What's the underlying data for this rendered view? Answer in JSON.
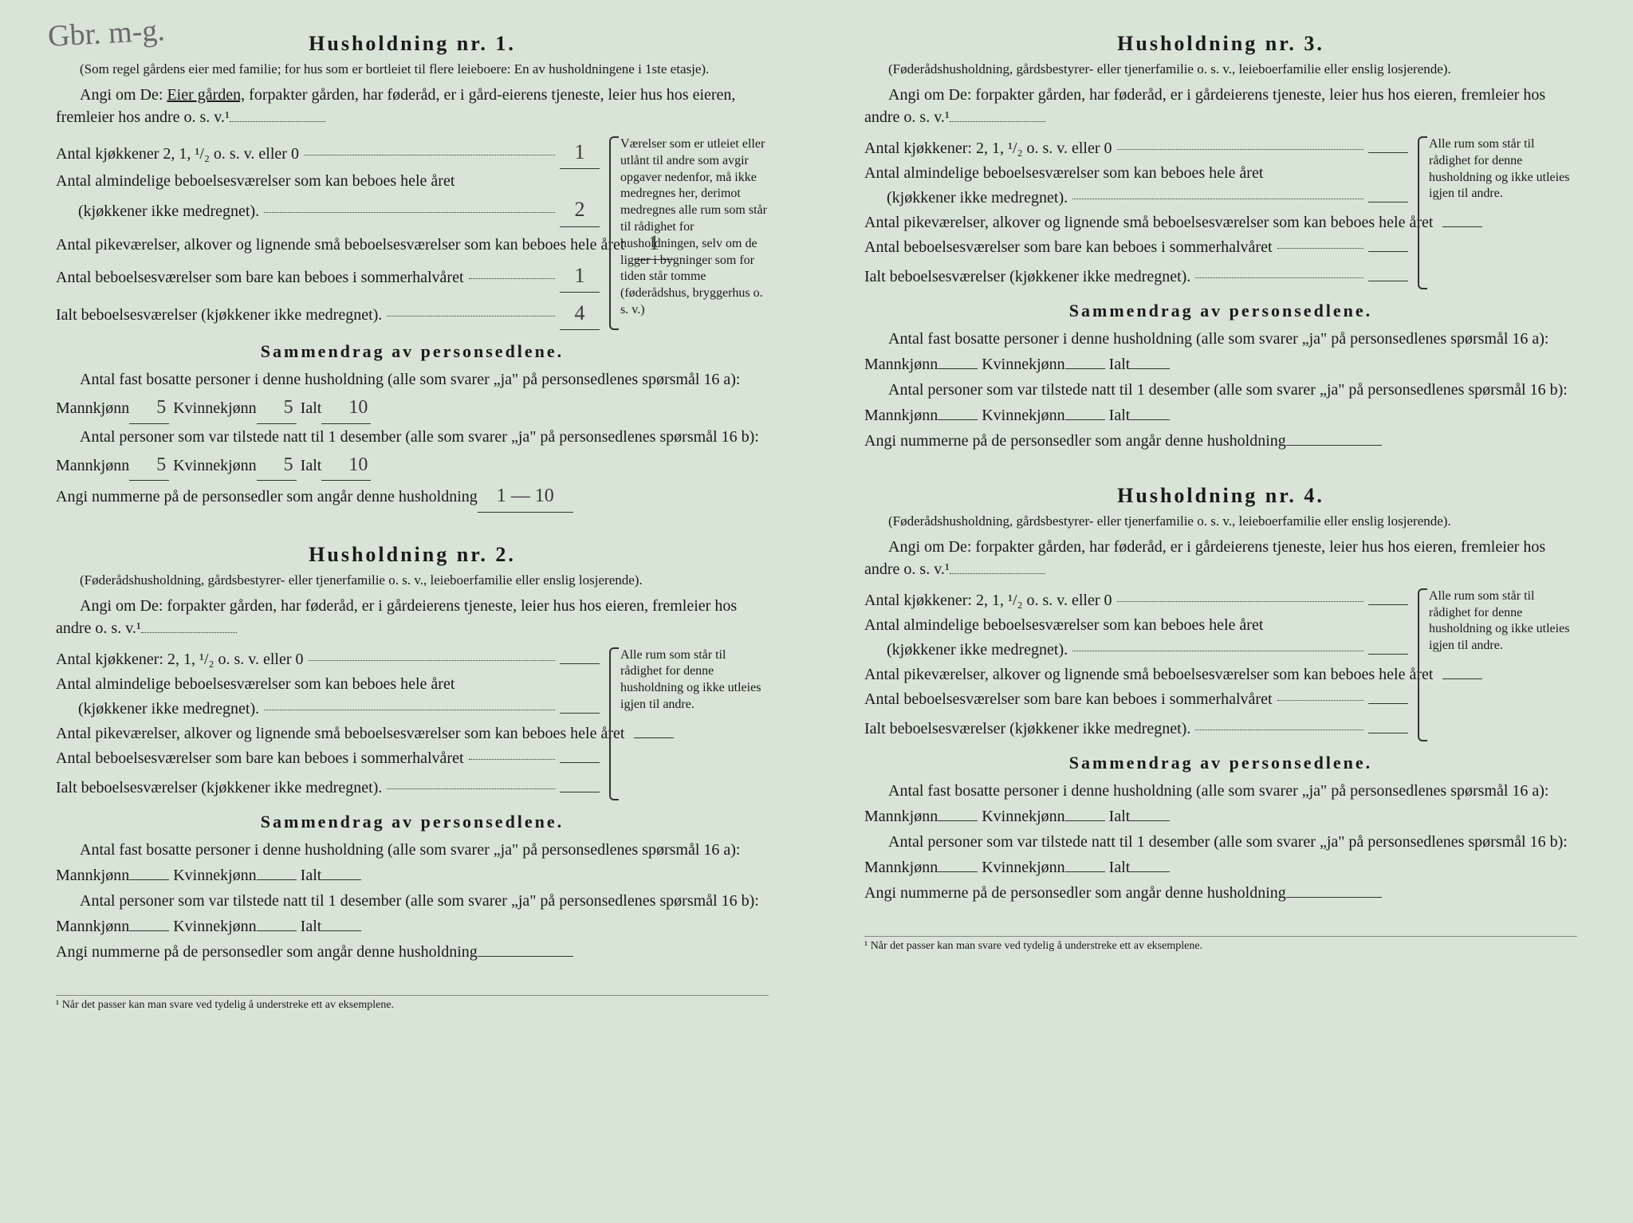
{
  "handwritten_corner": "Gbr.\nm-g.",
  "footnote": "¹ Når det passer kan man svare ved tydelig å understreke ett av eksemplene.",
  "households": [
    {
      "title": "Husholdning nr. 1.",
      "subtitle": "(Som regel gårdens eier med familie; for hus som er bortleiet til flere leieboere: En av husholdningene i 1ste etasje).",
      "instruct_pre": "Angi om De: ",
      "instruct_underlined": "Eier gården,",
      "instruct_post": " forpakter gården, har føderåd, er i gård-eierens tjeneste, leier hus hos eieren, fremleier hos andre o. s. v.¹",
      "rooms": {
        "kitchen": {
          "label": "Antal kjøkkener 2, 1, ¹/₂ o. s. v. eller 0",
          "value": "1"
        },
        "ordinary": {
          "label": "Antal almindelige beboelsesværelser som kan beboes hele året",
          "sublabel": "(kjøkkener ikke medregnet).",
          "value": "2"
        },
        "small": {
          "label": "Antal pikeværelser, alkover og lignende små beboelsesværelser som kan beboes hele året",
          "value": "1"
        },
        "summer": {
          "label": "Antal beboelsesværelser som bare kan beboes i sommerhalvåret",
          "value": "1"
        },
        "total": {
          "label": "Ialt beboelsesværelser (kjøkkener ikke medregnet).",
          "value": "4"
        }
      },
      "side_note": "Værelser som er utleiet eller utlånt til andre som avgir opgaver nedenfor, må ikke medregnes her, derimot medregnes alle rum som står til rådighet for husholdningen, selv om de ligger i bygninger som for tiden står tomme (føderådshus, bryggerhus o. s. v.)",
      "summary_title": "Sammendrag av personsedlene.",
      "q16a": {
        "text": "Antal fast bosatte personer i denne husholdning (alle som svarer „ja\" på personsedlenes spørsmål 16 a): Mannkjønn",
        "m": "5",
        "k_label": "Kvinnekjønn",
        "k": "5",
        "i_label": "Ialt",
        "i": "10"
      },
      "q16b": {
        "text": "Antal personer som var tilstede natt til 1 desember (alle som svarer „ja\" på personsedlenes spørsmål 16 b): Mannkjønn",
        "m": "5",
        "k_label": "Kvinnekjønn",
        "k": "5",
        "i_label": "Ialt",
        "i": "10"
      },
      "numbers": {
        "label": "Angi nummerne på de personsedler som angår denne husholdning",
        "value": "1 — 10"
      }
    },
    {
      "title": "Husholdning nr. 2.",
      "subtitle": "(Føderådshusholdning, gårdsbestyrer- eller tjenerfamilie o. s. v., leieboerfamilie eller enslig losjerende).",
      "instruct_pre": "Angi om De: ",
      "instruct_underlined": "",
      "instruct_post": "forpakter gården, har føderåd, er i gårdeierens tjeneste, leier hus hos eieren, fremleier hos andre o. s. v.¹",
      "rooms": {
        "kitchen": {
          "label": "Antal kjøkkener: 2, 1, ¹/₂ o. s. v. eller 0",
          "value": ""
        },
        "ordinary": {
          "label": "Antal almindelige beboelsesværelser som kan beboes hele året",
          "sublabel": "(kjøkkener ikke medregnet).",
          "value": ""
        },
        "small": {
          "label": "Antal pikeværelser, alkover og lignende små beboelsesværelser som kan beboes hele året",
          "value": ""
        },
        "summer": {
          "label": "Antal beboelsesværelser som bare kan beboes i sommerhalvåret",
          "value": ""
        },
        "total": {
          "label": "Ialt beboelsesværelser (kjøkkener ikke medregnet).",
          "value": ""
        }
      },
      "side_note": "Alle rum som står til rådighet for denne husholdning og ikke utleies igjen til andre.",
      "summary_title": "Sammendrag av personsedlene.",
      "q16a": {
        "text": "Antal fast bosatte personer i denne husholdning (alle som svarer „ja\" på personsedlenes spørsmål 16 a): Mannkjønn",
        "m": "",
        "k_label": "Kvinnekjønn",
        "k": "",
        "i_label": "Ialt",
        "i": ""
      },
      "q16b": {
        "text": "Antal personer som var tilstede natt til 1 desember (alle som svarer „ja\" på personsedlenes spørsmål 16 b): Mannkjønn",
        "m": "",
        "k_label": "Kvinnekjønn",
        "k": "",
        "i_label": "Ialt",
        "i": ""
      },
      "numbers": {
        "label": "Angi nummerne på de personsedler som angår denne husholdning",
        "value": ""
      }
    },
    {
      "title": "Husholdning nr. 3.",
      "subtitle": "(Føderådshusholdning, gårdsbestyrer- eller tjenerfamilie o. s. v., leieboerfamilie eller enslig losjerende).",
      "instruct_pre": "Angi om De: ",
      "instruct_underlined": "",
      "instruct_post": "forpakter gården, har føderåd, er i gårdeierens tjeneste, leier hus hos eieren, fremleier hos andre o. s. v.¹",
      "rooms": {
        "kitchen": {
          "label": "Antal kjøkkener: 2, 1, ¹/₂ o. s. v. eller 0",
          "value": ""
        },
        "ordinary": {
          "label": "Antal almindelige beboelsesværelser som kan beboes hele året",
          "sublabel": "(kjøkkener ikke medregnet).",
          "value": ""
        },
        "small": {
          "label": "Antal pikeværelser, alkover og lignende små beboelsesværelser som kan beboes hele året",
          "value": ""
        },
        "summer": {
          "label": "Antal beboelsesværelser som bare kan beboes i sommerhalvåret",
          "value": ""
        },
        "total": {
          "label": "Ialt beboelsesværelser (kjøkkener ikke medregnet).",
          "value": ""
        }
      },
      "side_note": "Alle rum som står til rådighet for denne husholdning og ikke utleies igjen til andre.",
      "summary_title": "Sammendrag av personsedlene.",
      "q16a": {
        "text": "Antal fast bosatte personer i denne husholdning (alle som svarer „ja\" på personsedlenes spørsmål 16 a): Mannkjønn",
        "m": "",
        "k_label": "Kvinnekjønn",
        "k": "",
        "i_label": "Ialt",
        "i": ""
      },
      "q16b": {
        "text": "Antal personer som var tilstede natt til 1 desember (alle som svarer „ja\" på personsedlenes spørsmål 16 b): Mannkjønn",
        "m": "",
        "k_label": "Kvinnekjønn",
        "k": "",
        "i_label": "Ialt",
        "i": ""
      },
      "numbers": {
        "label": "Angi nummerne på de personsedler som angår denne husholdning",
        "value": ""
      }
    },
    {
      "title": "Husholdning nr. 4.",
      "subtitle": "(Føderådshusholdning, gårdsbestyrer- eller tjenerfamilie o. s. v., leieboerfamilie eller enslig losjerende).",
      "instruct_pre": "Angi om De: ",
      "instruct_underlined": "",
      "instruct_post": "forpakter gården, har føderåd, er i gårdeierens tjeneste, leier hus hos eieren, fremleier hos andre o. s. v.¹",
      "rooms": {
        "kitchen": {
          "label": "Antal kjøkkener: 2, 1, ¹/₂ o. s. v. eller 0",
          "value": ""
        },
        "ordinary": {
          "label": "Antal almindelige beboelsesværelser som kan beboes hele året",
          "sublabel": "(kjøkkener ikke medregnet).",
          "value": ""
        },
        "small": {
          "label": "Antal pikeværelser, alkover og lignende små beboelsesværelser som kan beboes hele året",
          "value": ""
        },
        "summer": {
          "label": "Antal beboelsesværelser som bare kan beboes i sommerhalvåret",
          "value": ""
        },
        "total": {
          "label": "Ialt beboelsesværelser (kjøkkener ikke medregnet).",
          "value": ""
        }
      },
      "side_note": "Alle rum som står til rådighet for denne husholdning og ikke utleies igjen til andre.",
      "summary_title": "Sammendrag av personsedlene.",
      "q16a": {
        "text": "Antal fast bosatte personer i denne husholdning (alle som svarer „ja\" på personsedlenes spørsmål 16 a): Mannkjønn",
        "m": "",
        "k_label": "Kvinnekjønn",
        "k": "",
        "i_label": "Ialt",
        "i": ""
      },
      "q16b": {
        "text": "Antal personer som var tilstede natt til 1 desember (alle som svarer „ja\" på personsedlenes spørsmål 16 b): Mannkjønn",
        "m": "",
        "k_label": "Kvinnekjønn",
        "k": "",
        "i_label": "Ialt",
        "i": ""
      },
      "numbers": {
        "label": "Angi nummerne på de personsedler som angår denne husholdning",
        "value": ""
      }
    }
  ]
}
